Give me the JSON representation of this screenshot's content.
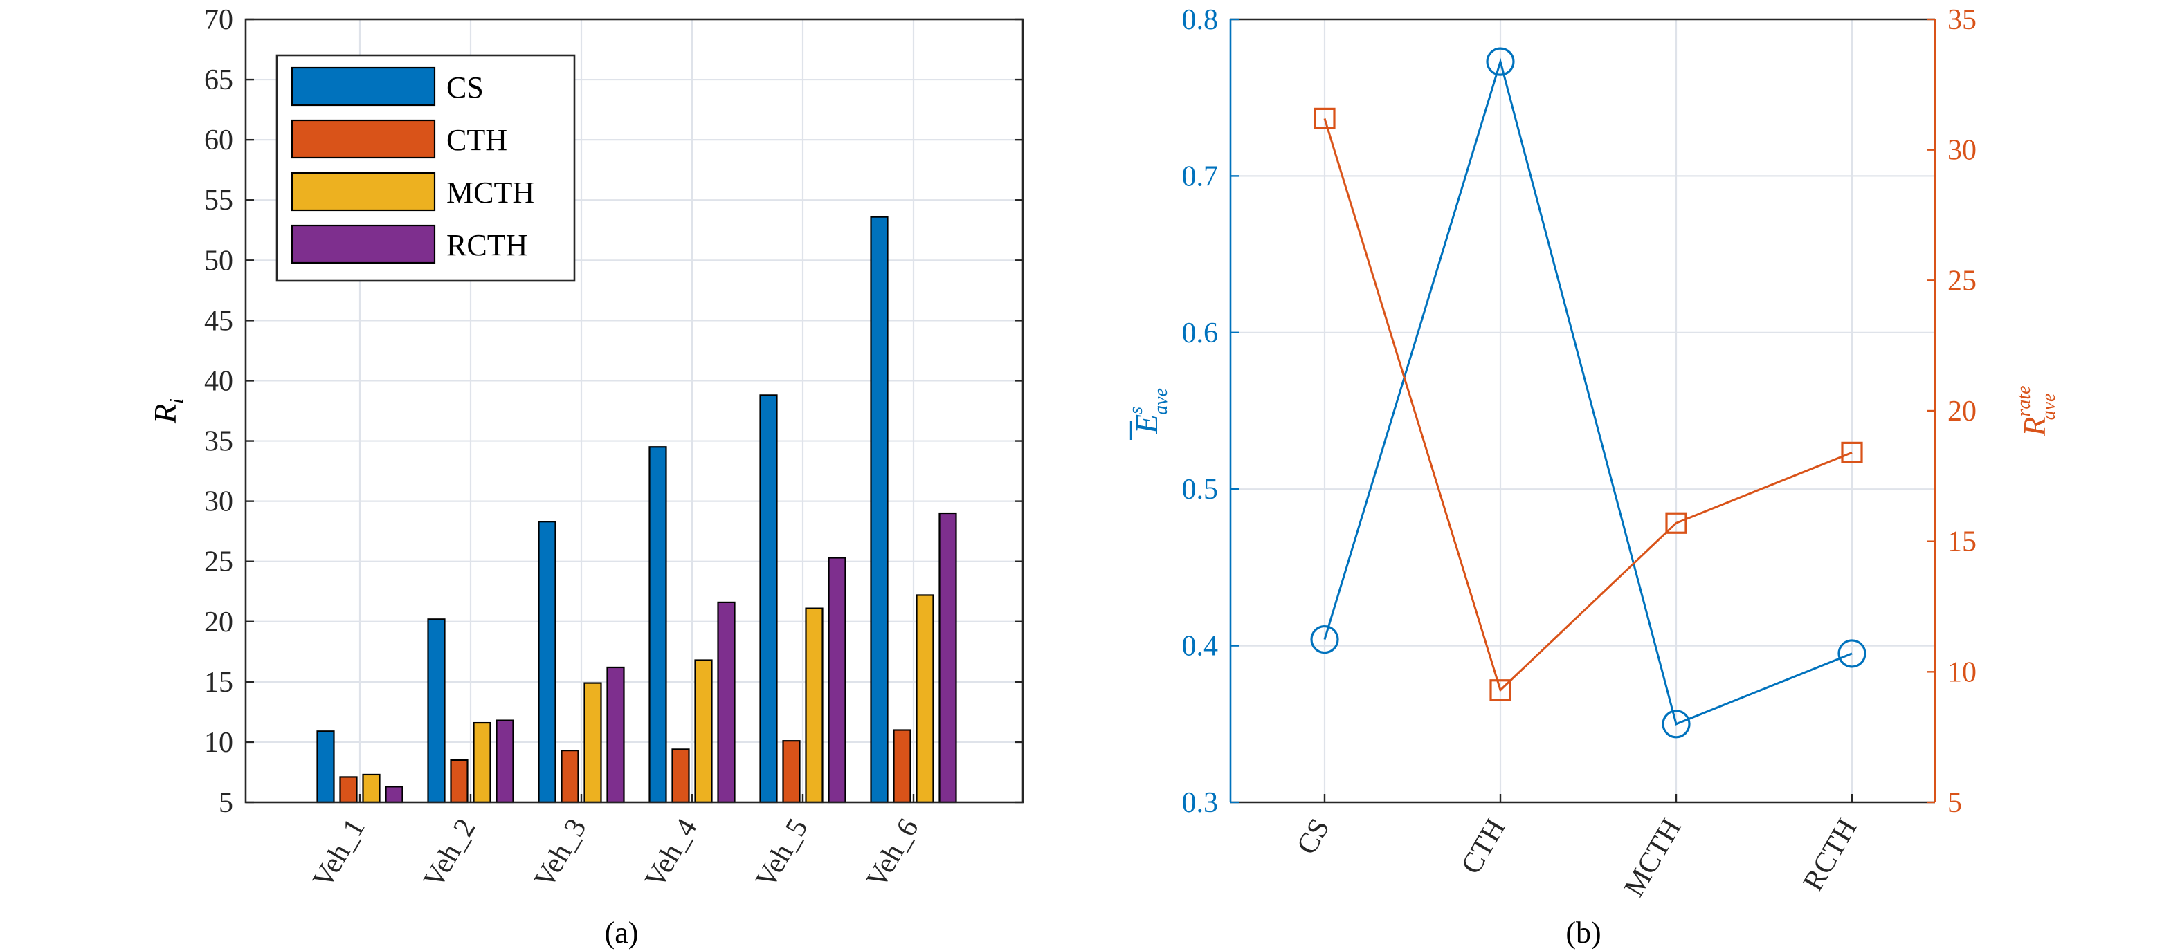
{
  "chart_data": [
    {
      "type": "bar",
      "caption": "(a)",
      "ylabel": "R",
      "ylabel_sub": "i",
      "ylim": [
        5,
        70
      ],
      "yticks": [
        5,
        10,
        15,
        20,
        25,
        30,
        35,
        40,
        45,
        50,
        55,
        60,
        65,
        70
      ],
      "grid": true,
      "legend_position": "top-left",
      "categories": [
        "Veh_1",
        "Veh_2",
        "Veh_3",
        "Veh_4",
        "Veh_5",
        "Veh_6"
      ],
      "series": [
        {
          "name": "CS",
          "color": "#0072BD",
          "values": [
            10.9,
            20.2,
            28.3,
            34.5,
            38.8,
            53.6
          ]
        },
        {
          "name": "CTH",
          "color": "#D95319",
          "values": [
            7.1,
            8.5,
            9.3,
            9.4,
            10.1,
            11.0
          ]
        },
        {
          "name": "MCTH",
          "color": "#EDB120",
          "values": [
            7.3,
            11.6,
            14.9,
            16.8,
            21.1,
            22.2
          ]
        },
        {
          "name": "RCTH",
          "color": "#7E2F8E",
          "values": [
            6.3,
            11.8,
            16.2,
            21.6,
            25.3,
            29.0
          ]
        }
      ]
    },
    {
      "type": "line",
      "caption": "(b)",
      "categories": [
        "CS",
        "CTH",
        "MCTH",
        "RCTH"
      ],
      "grid": true,
      "left_axis": {
        "label": "E",
        "label_sup": "s",
        "label_sub": "ave",
        "ylim": [
          0.3,
          0.8
        ],
        "yticks": [
          "0.3",
          "0.4",
          "0.5",
          "0.6",
          "0.7",
          "0.8"
        ],
        "color": "#0072BD"
      },
      "right_axis": {
        "label": "R",
        "label_sup": "rate",
        "label_sub": "ave",
        "ylim": [
          5,
          35
        ],
        "yticks": [
          "5",
          "10",
          "15",
          "20",
          "25",
          "30",
          "35"
        ],
        "color": "#D95319"
      },
      "series": [
        {
          "axis": "left",
          "marker": "circle",
          "color": "#0072BD",
          "values": [
            0.404,
            0.773,
            0.35,
            0.395
          ]
        },
        {
          "axis": "right",
          "marker": "square",
          "color": "#D95319",
          "values": [
            31.2,
            9.3,
            15.7,
            18.4
          ]
        }
      ]
    }
  ]
}
